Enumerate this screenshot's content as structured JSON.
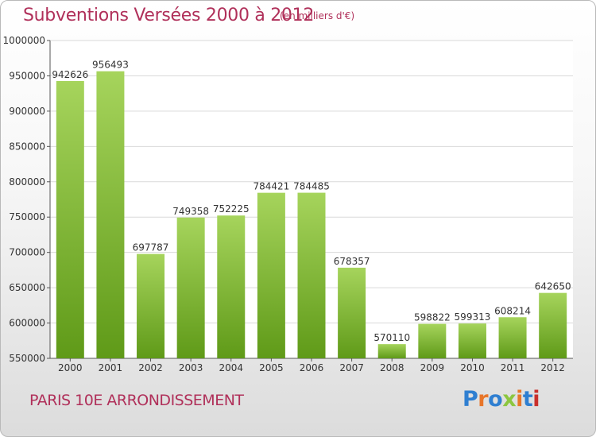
{
  "header": {
    "title": "Subventions Versées 2000 à 2012",
    "unit_note": "(en milliers d'€)"
  },
  "footer": {
    "region": "PARIS 10E  ARRONDISSEMENT",
    "logo_text": "Proxiti",
    "logo_colors": [
      "#2f7fd1",
      "#e8762a",
      "#2f7fd1",
      "#8cc63f",
      "#e8762a",
      "#2f7fd1",
      "#c9302c"
    ]
  },
  "colors": {
    "title": "#b0305a",
    "bar_light": "#a6d45c",
    "bar_dark": "#5f9a18",
    "grid": "#d9d9d9"
  },
  "chart_data": {
    "type": "bar",
    "categories": [
      "2000",
      "2001",
      "2002",
      "2003",
      "2004",
      "2005",
      "2006",
      "2007",
      "2008",
      "2009",
      "2010",
      "2011",
      "2012"
    ],
    "values": [
      942626,
      956493,
      697787,
      749358,
      752225,
      784421,
      784485,
      678357,
      570110,
      598822,
      599313,
      608214,
      642650
    ],
    "yticks": [
      550000,
      600000,
      650000,
      700000,
      750000,
      800000,
      850000,
      900000,
      950000,
      1000000
    ],
    "ylim": [
      550000,
      1000000
    ],
    "grid": true,
    "data_labels": true
  }
}
